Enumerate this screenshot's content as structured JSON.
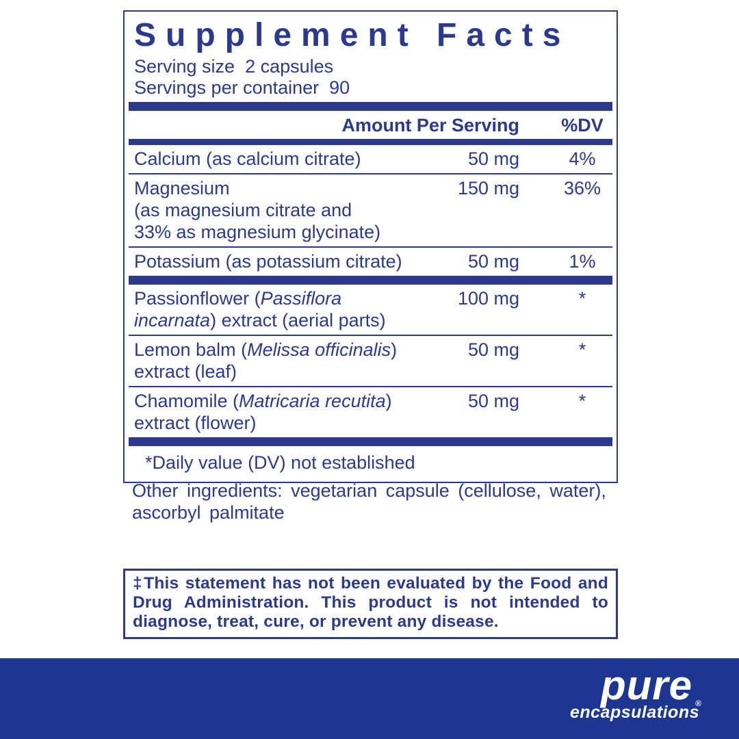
{
  "panel": {
    "title": "Supplement Facts",
    "serving_size": "Serving size  2 capsules",
    "servings_per_container": "Servings per container  90",
    "header": {
      "amount": "Amount Per Serving",
      "dv": "%DV"
    },
    "rows": [
      {
        "name_parts": [
          {
            "t": "Calcium (as calcium citrate)"
          }
        ],
        "amount": "50 mg",
        "dv": "4%",
        "divider": "thin"
      },
      {
        "name_parts": [
          {
            "t": "Magnesium"
          },
          {
            "br": true
          },
          {
            "t": "(as magnesium citrate and"
          },
          {
            "br": true
          },
          {
            "t": "33% as magnesium glycinate)"
          }
        ],
        "amount": "150 mg",
        "dv": "36%",
        "divider": "thin"
      },
      {
        "name_parts": [
          {
            "t": "Potassium (as potassium citrate)"
          }
        ],
        "amount": "50 mg",
        "dv": "1%",
        "divider": "thick"
      },
      {
        "name_parts": [
          {
            "t": "Passionflower ("
          },
          {
            "t": "Passiflora",
            "i": true
          },
          {
            "br": true
          },
          {
            "t": "incarnata",
            "i": true
          },
          {
            "t": ") extract (aerial parts)"
          }
        ],
        "amount": "100 mg",
        "dv": "*",
        "divider": "thin"
      },
      {
        "name_parts": [
          {
            "t": "Lemon balm ("
          },
          {
            "t": "Melissa officinalis",
            "i": true
          },
          {
            "t": ")"
          },
          {
            "br": true
          },
          {
            "t": "extract (leaf)"
          }
        ],
        "amount": "50 mg",
        "dv": "*",
        "divider": "thin"
      },
      {
        "name_parts": [
          {
            "t": "Chamomile ("
          },
          {
            "t": "Matricaria recutita",
            "i": true
          },
          {
            "t": ")"
          },
          {
            "br": true
          },
          {
            "t": "extract (flower)"
          }
        ],
        "amount": "50 mg",
        "dv": "*",
        "divider": "thick"
      }
    ],
    "footnote": "*Daily value (DV) not established"
  },
  "other_ingredients": "Other ingredients: vegetarian capsule (cellulose, water),\nascorbyl palmitate",
  "disclaimer": "‡This statement has not been evaluated by the Food and Drug Administration. This product is not intended to diagnose, treat, cure, or prevent any disease.",
  "footer": {
    "brand": "pure",
    "brand_sub": "encapsulations",
    "registered": "®"
  },
  "colors": {
    "navy": "#2b3990",
    "footer_blue": "#1d3691",
    "logo_white": "#ffffff"
  }
}
